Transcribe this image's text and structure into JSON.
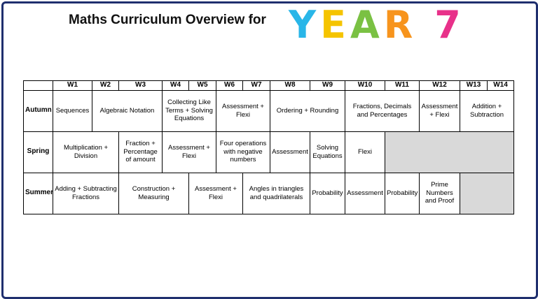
{
  "header": {
    "title": "Maths Curriculum Overview for",
    "year": "YEAR 7"
  },
  "table": {
    "weeks": [
      "W1",
      "W2",
      "W3",
      "W4",
      "W5",
      "W6",
      "W7",
      "W8",
      "W9",
      "W10",
      "W11",
      "W12",
      "W13",
      "W14"
    ],
    "rows": [
      {
        "term": "Autumn",
        "cells": [
          {
            "text": "Sequences",
            "span": 1
          },
          {
            "text": "Algebraic Notation",
            "span": 2
          },
          {
            "text": "Collecting Like Terms + Solving Equations",
            "span": 2
          },
          {
            "text": "Assessment + Flexi",
            "span": 2
          },
          {
            "text": "Ordering + Rounding",
            "span": 2
          },
          {
            "text": "Fractions, Decimals and Percentages",
            "span": 2
          },
          {
            "text": "Assessment + Flexi",
            "span": 1
          },
          {
            "text": "Addition + Subtraction",
            "span": 2
          }
        ]
      },
      {
        "term": "Spring",
        "cells": [
          {
            "text": "Multiplication + Division",
            "span": 2
          },
          {
            "text": "Fraction + Percentage of amount",
            "span": 1
          },
          {
            "text": "Assessment + Flexi",
            "span": 2
          },
          {
            "text": "Four operations with negative numbers",
            "span": 2
          },
          {
            "text": "Assessment",
            "span": 1
          },
          {
            "text": "Solving Equations",
            "span": 1
          },
          {
            "text": "Flexi",
            "span": 1
          },
          {
            "span": 4
          }
        ]
      },
      {
        "term": "Summer",
        "cells": [
          {
            "text": "Adding + Subtracting Fractions",
            "span": 2
          },
          {
            "text": "Construction + Measuring",
            "span": 2
          },
          {
            "text": "Assessment + Flexi",
            "span": 2
          },
          {
            "text": "Angles in triangles and quadrilaterals",
            "span": 2
          },
          {
            "text": "Probability",
            "span": 1
          },
          {
            "text": "Assessment",
            "span": 1
          },
          {
            "text": "Probability",
            "span": 1
          },
          {
            "text": "Prime Numbers and Proof",
            "span": 1
          },
          {
            "span": 2
          }
        ]
      }
    ]
  }
}
